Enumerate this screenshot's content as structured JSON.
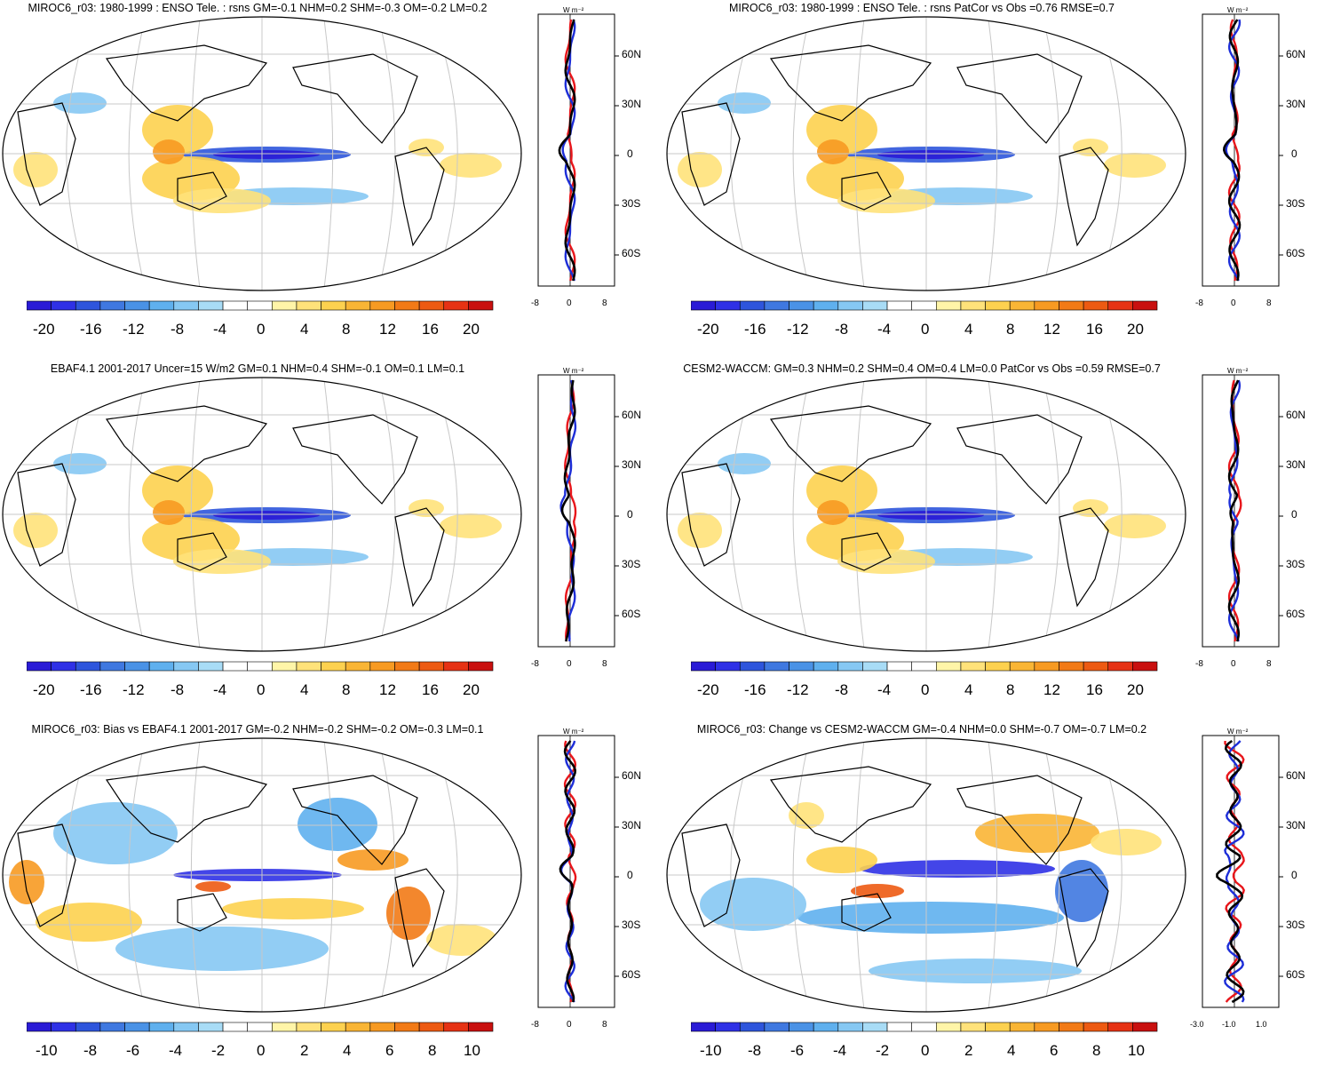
{
  "colors": {
    "scale": [
      "#2a1bd6",
      "#2f31e6",
      "#2e55dc",
      "#3f78e0",
      "#4a92e6",
      "#5fb0ee",
      "#86c8f3",
      "#a8dcf6",
      "#ffffff",
      "#ffffff",
      "#fff5a8",
      "#ffe27a",
      "#fdd14f",
      "#f9b535",
      "#f79a22",
      "#f27a16",
      "#ed5a12",
      "#e63214",
      "#c9100f"
    ],
    "coast": "#000000",
    "grid": "#c8c8c8",
    "series_red": "#e8161b",
    "series_blue": "#1d2ed8",
    "series_black": "#000000"
  },
  "panels": [
    {
      "id": "p1",
      "title": "MIROC6_r03: 1980-1999 : ENSO Tele. : rsns GM=-0.1 NHM=0.2 SHM=-0.3 OM=-0.2 LM=0.2",
      "units": "W m⁻²",
      "lat_ticks": [
        "60N",
        "30N",
        "0",
        "30S",
        "60S"
      ],
      "zonal_ticks": [
        "-8",
        "0",
        "8"
      ],
      "colorbar_ticks": [
        "-20",
        "-16",
        "-12",
        "-8",
        "-4",
        "0",
        "4",
        "8",
        "12",
        "16",
        "20"
      ]
    },
    {
      "id": "p2",
      "title": "MIROC6_r03: 1980-1999 : ENSO Tele. : rsns PatCor vs Obs =0.76 RMSE=0.7",
      "units": "W m⁻²",
      "lat_ticks": [
        "60N",
        "30N",
        "0",
        "30S",
        "60S"
      ],
      "zonal_ticks": [
        "-8",
        "0",
        "8"
      ],
      "colorbar_ticks": [
        "-20",
        "-16",
        "-12",
        "-8",
        "-4",
        "0",
        "4",
        "8",
        "12",
        "16",
        "20"
      ]
    },
    {
      "id": "p3",
      "title": "EBAF4.1 2001-2017 Uncer=15 W/m2 GM=0.1 NHM=0.4 SHM=-0.1 OM=0.1 LM=0.1",
      "units": "W m⁻²",
      "lat_ticks": [
        "60N",
        "30N",
        "0",
        "30S",
        "60S"
      ],
      "zonal_ticks": [
        "-8",
        "0",
        "8"
      ],
      "colorbar_ticks": [
        "-20",
        "-16",
        "-12",
        "-8",
        "-4",
        "0",
        "4",
        "8",
        "12",
        "16",
        "20"
      ]
    },
    {
      "id": "p4",
      "title": "CESM2-WACCM: GM=0.3 NHM=0.2 SHM=0.4 OM=0.4 LM=0.0 PatCor vs Obs =0.59 RMSE=0.7",
      "units": "W m⁻²",
      "lat_ticks": [
        "60N",
        "30N",
        "0",
        "30S",
        "60S"
      ],
      "zonal_ticks": [
        "-8",
        "0",
        "8"
      ],
      "colorbar_ticks": [
        "-20",
        "-16",
        "-12",
        "-8",
        "-4",
        "0",
        "4",
        "8",
        "12",
        "16",
        "20"
      ]
    },
    {
      "id": "p5",
      "title": "MIROC6_r03: Bias vs EBAF4.1 2001-2017 GM=-0.2 NHM=-0.2 SHM=-0.2 OM=-0.3 LM=0.1",
      "units": "W m⁻²",
      "lat_ticks": [
        "60N",
        "30N",
        "0",
        "30S",
        "60S"
      ],
      "zonal_ticks": [
        "-8",
        "0",
        "8"
      ],
      "colorbar_ticks": [
        "-10",
        "-8",
        "-6",
        "-4",
        "-2",
        "0",
        "2",
        "4",
        "6",
        "8",
        "10"
      ]
    },
    {
      "id": "p6",
      "title": "MIROC6_r03: Change vs CESM2-WACCM GM=-0.4 NHM=0.0 SHM=-0.7 OM=-0.7 LM=0.2",
      "units": "W m⁻²",
      "lat_ticks": [
        "60N",
        "30N",
        "0",
        "30S",
        "60S"
      ],
      "zonal_ticks": [
        "-3.0",
        "-1.0",
        "1.0"
      ],
      "colorbar_ticks": [
        "-10",
        "-8",
        "-6",
        "-4",
        "-2",
        "0",
        "2",
        "4",
        "6",
        "8",
        "10"
      ]
    }
  ]
}
